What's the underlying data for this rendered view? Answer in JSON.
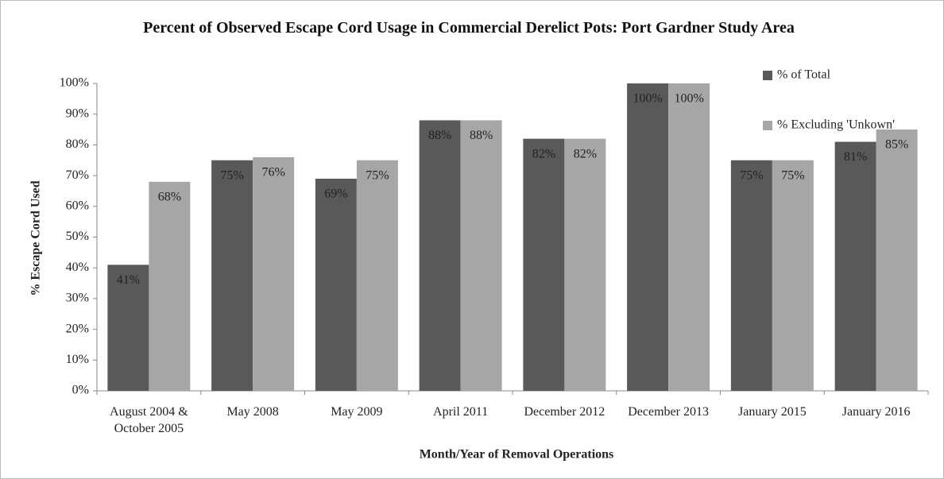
{
  "chart_data": {
    "type": "bar",
    "title": "Percent of Observed Escape Cord Usage in Commercial Derelict Pots: Port Gardner Study Area",
    "xlabel": "Month/Year of Removal Operations",
    "ylabel": "% Escape Cord Used",
    "categories": [
      "August 2004 & October 2005",
      "May 2008",
      "May 2009",
      "April 2011",
      "December 2012",
      "December 2013",
      "January 2015",
      "January 2016"
    ],
    "series": [
      {
        "name": "% of Total",
        "color": "#595959",
        "values": [
          41,
          75,
          69,
          88,
          82,
          100,
          75,
          81
        ],
        "value_labels": [
          "41%",
          "75%",
          "69%",
          "88%",
          "82%",
          "100%",
          "75%",
          "81%"
        ]
      },
      {
        "name": "% Excluding 'Unkown'",
        "color": "#a6a6a6",
        "values": [
          68,
          76,
          75,
          88,
          82,
          100,
          75,
          85
        ],
        "value_labels": [
          "68%",
          "76%",
          "75%",
          "88%",
          "82%",
          "100%",
          "75%",
          "85%"
        ]
      }
    ],
    "ylim": [
      0,
      100
    ],
    "yticks": [
      {
        "value": 0,
        "label": "0%"
      },
      {
        "value": 10,
        "label": "10%"
      },
      {
        "value": 20,
        "label": "20%"
      },
      {
        "value": 30,
        "label": "30%"
      },
      {
        "value": 40,
        "label": "40%"
      },
      {
        "value": 50,
        "label": "50%"
      },
      {
        "value": 60,
        "label": "60%"
      },
      {
        "value": 70,
        "label": "70%"
      },
      {
        "value": 80,
        "label": "80%"
      },
      {
        "value": 90,
        "label": "90%"
      },
      {
        "value": 100,
        "label": "100%"
      }
    ],
    "legend": "upper right",
    "grid": false
  }
}
